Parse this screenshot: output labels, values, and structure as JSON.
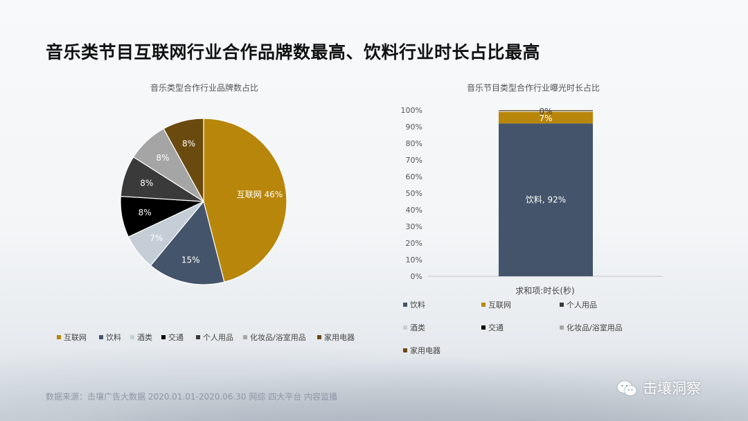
{
  "slide": {
    "title": "音乐类节目互联网行业合作品牌数最高、饮料行业时长占比最高"
  },
  "source_note": "数据来源：击壤广告大数据 2020.01.01-2020.06.30 网综 四大平台 内容监播",
  "brand": {
    "name": "击壤洞察",
    "icon": "wechat-icon"
  },
  "colors": {
    "互联网": "#b8860b",
    "饮料": "#44546a",
    "酒类": "#c5ced6",
    "交通": "#000000",
    "个人用品": "#3a3a3a",
    "化妆品/浴室用品": "#a5a5a5",
    "家用电器": "#6b4a10",
    "bar_个人用品": "#ffffff"
  },
  "chart_data": [
    {
      "type": "pie",
      "title": "音乐类型合作行业品牌数占比",
      "slices": [
        {
          "label": "互联网",
          "value": 46,
          "text": "互联网 46%"
        },
        {
          "label": "饮料",
          "value": 15,
          "text": "15%"
        },
        {
          "label": "酒类",
          "value": 7,
          "text": "7%"
        },
        {
          "label": "交通",
          "value": 8,
          "text": "8%"
        },
        {
          "label": "个人用品",
          "value": 8,
          "text": "8%"
        },
        {
          "label": "化妆品/浴室用品",
          "value": 8,
          "text": "8%"
        },
        {
          "label": "家用电器",
          "value": 8,
          "text": "8%"
        }
      ],
      "legend": [
        "互联网",
        "饮料",
        "酒类",
        "交通",
        "个人用品",
        "化妆品/浴室用品",
        "家用电器"
      ],
      "legend_position": "bottom"
    },
    {
      "type": "bar",
      "stacked": true,
      "title": "音乐节目类型合作行业曝光时长占比",
      "xlabel": "求和项:时长(秒)",
      "ylim": [
        0,
        100
      ],
      "yticks": [
        "0%",
        "10%",
        "20%",
        "30%",
        "40%",
        "50%",
        "60%",
        "70%",
        "80%",
        "90%",
        "100%"
      ],
      "series": [
        {
          "name": "饮料",
          "value": 92,
          "label": "饮料, 92%"
        },
        {
          "name": "互联网",
          "value": 7,
          "label": "7%"
        },
        {
          "name": "个人用品",
          "value": 0.5,
          "label": ""
        },
        {
          "name": "酒类",
          "value": 0.2,
          "label": ""
        },
        {
          "name": "交通",
          "value": 0.1,
          "label": ""
        },
        {
          "name": "化妆品/浴室用品",
          "value": 0.1,
          "label": ""
        },
        {
          "name": "家用电器",
          "value": 0.1,
          "label": "0%"
        }
      ],
      "legend": [
        "饮料",
        "互联网",
        "个人用品",
        "酒类",
        "交通",
        "化妆品/浴室用品",
        "家用电器"
      ],
      "legend_position": "bottom"
    }
  ]
}
